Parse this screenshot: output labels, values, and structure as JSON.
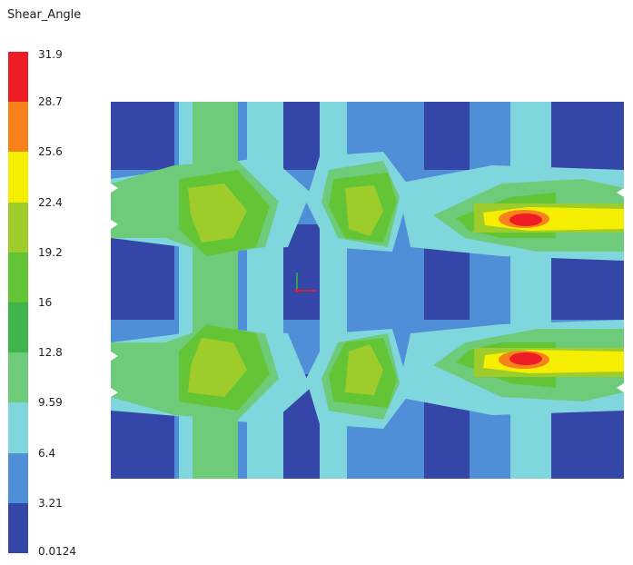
{
  "legend": {
    "title": "Shear_Angle",
    "ticks": [
      "31.9",
      "28.7",
      "25.6",
      "22.4",
      "19.2",
      "16",
      "12.8",
      "9.59",
      "6.4",
      "3.21",
      "0.0124"
    ],
    "colors": [
      "#ee1c24",
      "#f7821c",
      "#f5ee00",
      "#9ecd2b",
      "#63c436",
      "#3eb44a",
      "#6ecb7a",
      "#7fd6dc",
      "#4f8fd7",
      "#3446a8"
    ]
  },
  "plot": {
    "background": "#3446a8",
    "triad_icon": "coordinate-axes-icon"
  }
}
